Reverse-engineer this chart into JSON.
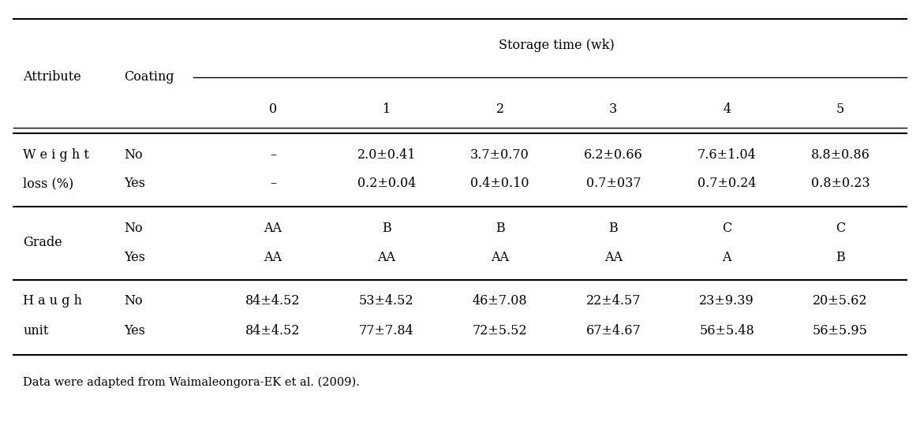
{
  "storage_time_label": "Storage time (wk)",
  "col_headers": [
    "0",
    "1",
    "2",
    "3",
    "4",
    "5"
  ],
  "attribute_col": "Attribute",
  "coating_col": "Coating",
  "rows": [
    {
      "attribute_line1": "W e i g h t",
      "attribute_line2": "loss (%)",
      "coating_no": "No",
      "coating_yes": "Yes",
      "values_no": [
        "–",
        "2.0±0.41",
        "3.7±0.70",
        "6.2±0.66",
        "7.6±1.04",
        "8.8±0.86"
      ],
      "values_yes": [
        "–",
        "0.2±0.04",
        "0.4±0.10",
        "0.7±037",
        "0.7±0.24",
        "0.8±0.23"
      ]
    },
    {
      "attribute_line1": "Grade",
      "attribute_line2": "",
      "coating_no": "No",
      "coating_yes": "Yes",
      "values_no": [
        "AA",
        "B",
        "B",
        "B",
        "C",
        "C"
      ],
      "values_yes": [
        "AA",
        "AA",
        "AA",
        "AA",
        "A",
        "B"
      ]
    },
    {
      "attribute_line1": "H a u g h",
      "attribute_line2": "unit",
      "coating_no": "No",
      "coating_yes": "Yes",
      "values_no": [
        "84±4.52",
        "53±4.52",
        "46±7.08",
        "22±4.57",
        "23±9.39",
        "20±5.62"
      ],
      "values_yes": [
        "84±4.52",
        "77±7.84",
        "72±5.52",
        "67±4.67",
        "56±5.48",
        "56±5.95"
      ]
    }
  ],
  "footnote": "Data were adapted from Waimaleongora-EK et al. (2009).",
  "bg_color": "#ffffff",
  "text_color": "#000000",
  "line_color": "#000000",
  "font_size": 11.5
}
